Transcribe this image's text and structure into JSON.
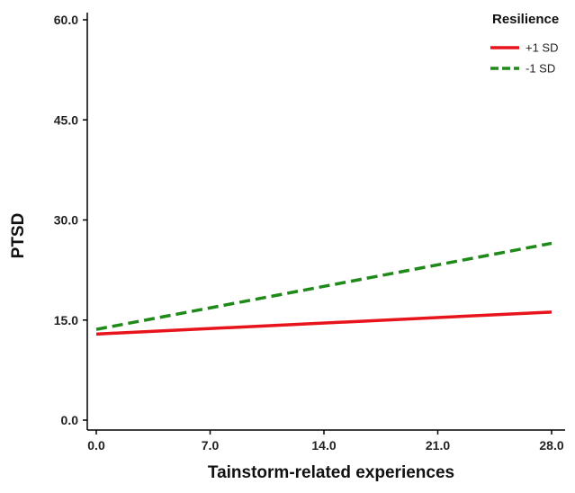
{
  "chart_data": {
    "type": "line",
    "xlabel": "Tainstorm-related experiences",
    "ylabel": "PTSD",
    "xlim": [
      0,
      28
    ],
    "ylim": [
      0,
      60
    ],
    "xticks": [
      0,
      7,
      14,
      21,
      28
    ],
    "xtick_labels": [
      "0.0",
      "7.0",
      "14.0",
      "21.0",
      "28.0"
    ],
    "yticks": [
      0,
      15,
      30,
      45,
      60
    ],
    "ytick_labels": [
      "0.0",
      "15.0",
      "30.0",
      "45.0",
      "60.0"
    ],
    "grid": false,
    "legend": {
      "title": "Resilience",
      "placement": "top-right"
    },
    "series": [
      {
        "name": "+1 SD",
        "x": [
          0,
          28
        ],
        "y": [
          12.9,
          16.2
        ],
        "color": "#e8141b",
        "dash": "solid"
      },
      {
        "name": "-1 SD",
        "x": [
          0,
          28
        ],
        "y": [
          13.6,
          26.5
        ],
        "color": "#1f8a1a",
        "dash": "dashed"
      }
    ]
  }
}
